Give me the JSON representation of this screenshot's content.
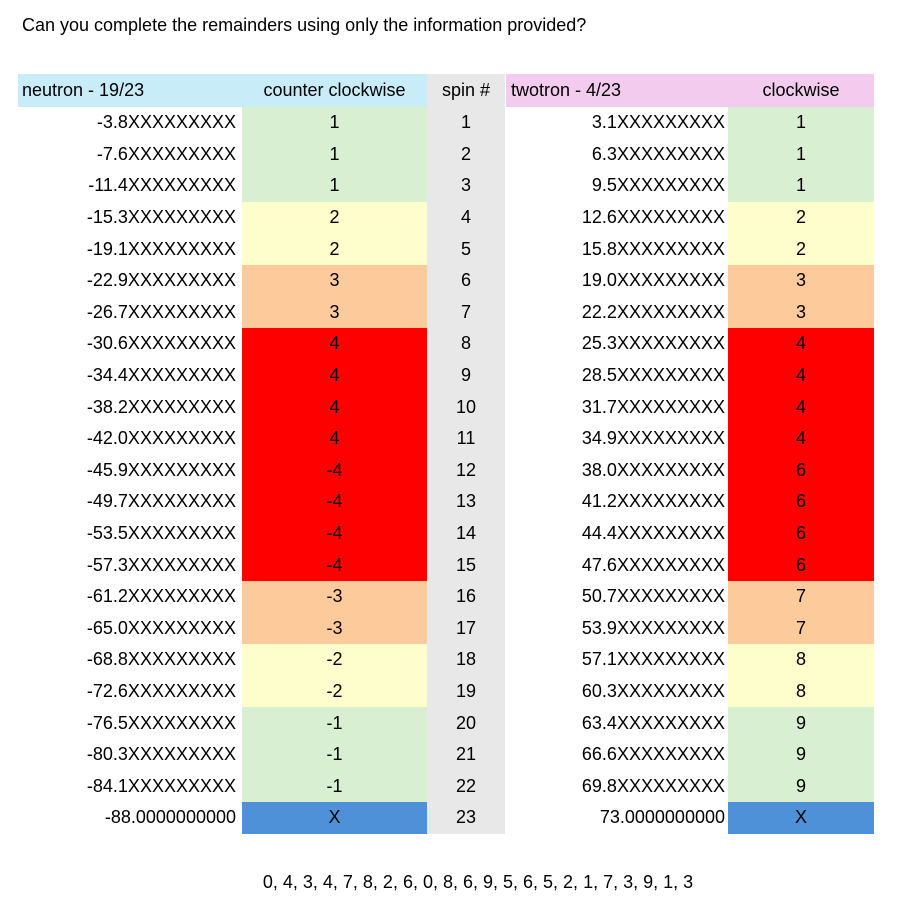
{
  "question": "Can you complete the remainders using only the information provided?",
  "headers": {
    "neutron": "neutron - 19/23",
    "ccw": "counter clockwise",
    "spin": "spin #",
    "twotron": "twotron - 4/23",
    "cw": "clockwise"
  },
  "colors": {
    "green": "#d9efd2",
    "yellow": "#fefdcc",
    "orange": "#fdca9c",
    "red": "#ff0000",
    "blue": "#4e91d9",
    "header_blue": "#c9ecf9",
    "header_pink": "#f2cbee",
    "spin_gray": "#e8e8e8"
  },
  "rows": [
    {
      "neutron": "-3.8XXXXXXXXX",
      "ccw": "1",
      "ccw_color": "green",
      "spin": "1",
      "twotron": "3.1XXXXXXXXX",
      "cw": "1",
      "cw_color": "green"
    },
    {
      "neutron": "-7.6XXXXXXXXX",
      "ccw": "1",
      "ccw_color": "green",
      "spin": "2",
      "twotron": "6.3XXXXXXXXX",
      "cw": "1",
      "cw_color": "green"
    },
    {
      "neutron": "-11.4XXXXXXXXX",
      "ccw": "1",
      "ccw_color": "green",
      "spin": "3",
      "twotron": "9.5XXXXXXXXX",
      "cw": "1",
      "cw_color": "green"
    },
    {
      "neutron": "-15.3XXXXXXXXX",
      "ccw": "2",
      "ccw_color": "yellow",
      "spin": "4",
      "twotron": "12.6XXXXXXXXX",
      "cw": "2",
      "cw_color": "yellow"
    },
    {
      "neutron": "-19.1XXXXXXXXX",
      "ccw": "2",
      "ccw_color": "yellow",
      "spin": "5",
      "twotron": "15.8XXXXXXXXX",
      "cw": "2",
      "cw_color": "yellow"
    },
    {
      "neutron": "-22.9XXXXXXXXX",
      "ccw": "3",
      "ccw_color": "orange",
      "spin": "6",
      "twotron": "19.0XXXXXXXXX",
      "cw": "3",
      "cw_color": "orange"
    },
    {
      "neutron": "-26.7XXXXXXXXX",
      "ccw": "3",
      "ccw_color": "orange",
      "spin": "7",
      "twotron": "22.2XXXXXXXXX",
      "cw": "3",
      "cw_color": "orange"
    },
    {
      "neutron": "-30.6XXXXXXXXX",
      "ccw": "4",
      "ccw_color": "red",
      "spin": "8",
      "twotron": "25.3XXXXXXXXX",
      "cw": "4",
      "cw_color": "red"
    },
    {
      "neutron": "-34.4XXXXXXXXX",
      "ccw": "4",
      "ccw_color": "red",
      "spin": "9",
      "twotron": "28.5XXXXXXXXX",
      "cw": "4",
      "cw_color": "red"
    },
    {
      "neutron": "-38.2XXXXXXXXX",
      "ccw": "4",
      "ccw_color": "red",
      "spin": "10",
      "twotron": "31.7XXXXXXXXX",
      "cw": "4",
      "cw_color": "red"
    },
    {
      "neutron": "-42.0XXXXXXXXX",
      "ccw": "4",
      "ccw_color": "red",
      "spin": "11",
      "twotron": "34.9XXXXXXXXX",
      "cw": "4",
      "cw_color": "red"
    },
    {
      "neutron": "-45.9XXXXXXXXX",
      "ccw": "-4",
      "ccw_color": "red",
      "spin": "12",
      "twotron": "38.0XXXXXXXXX",
      "cw": "6",
      "cw_color": "red"
    },
    {
      "neutron": "-49.7XXXXXXXXX",
      "ccw": "-4",
      "ccw_color": "red",
      "spin": "13",
      "twotron": "41.2XXXXXXXXX",
      "cw": "6",
      "cw_color": "red"
    },
    {
      "neutron": "-53.5XXXXXXXXX",
      "ccw": "-4",
      "ccw_color": "red",
      "spin": "14",
      "twotron": "44.4XXXXXXXXX",
      "cw": "6",
      "cw_color": "red"
    },
    {
      "neutron": "-57.3XXXXXXXXX",
      "ccw": "-4",
      "ccw_color": "red",
      "spin": "15",
      "twotron": "47.6XXXXXXXXX",
      "cw": "6",
      "cw_color": "red"
    },
    {
      "neutron": "-61.2XXXXXXXXX",
      "ccw": "-3",
      "ccw_color": "orange",
      "spin": "16",
      "twotron": "50.7XXXXXXXXX",
      "cw": "7",
      "cw_color": "orange"
    },
    {
      "neutron": "-65.0XXXXXXXXX",
      "ccw": "-3",
      "ccw_color": "orange",
      "spin": "17",
      "twotron": "53.9XXXXXXXXX",
      "cw": "7",
      "cw_color": "orange"
    },
    {
      "neutron": "-68.8XXXXXXXXX",
      "ccw": "-2",
      "ccw_color": "yellow",
      "spin": "18",
      "twotron": "57.1XXXXXXXXX",
      "cw": "8",
      "cw_color": "yellow"
    },
    {
      "neutron": "-72.6XXXXXXXXX",
      "ccw": "-2",
      "ccw_color": "yellow",
      "spin": "19",
      "twotron": "60.3XXXXXXXXX",
      "cw": "8",
      "cw_color": "yellow"
    },
    {
      "neutron": "-76.5XXXXXXXXX",
      "ccw": "-1",
      "ccw_color": "green",
      "spin": "20",
      "twotron": "63.4XXXXXXXXX",
      "cw": "9",
      "cw_color": "green"
    },
    {
      "neutron": "-80.3XXXXXXXXX",
      "ccw": "-1",
      "ccw_color": "green",
      "spin": "21",
      "twotron": "66.6XXXXXXXXX",
      "cw": "9",
      "cw_color": "green"
    },
    {
      "neutron": "-84.1XXXXXXXXX",
      "ccw": "-1",
      "ccw_color": "green",
      "spin": "22",
      "twotron": "69.8XXXXXXXXX",
      "cw": "9",
      "cw_color": "green"
    },
    {
      "neutron": "-88.0000000000",
      "ccw": "X",
      "ccw_color": "blue",
      "spin": "23",
      "twotron": "73.0000000000",
      "cw": "X",
      "cw_color": "blue"
    }
  ],
  "footer": "0, 4, 3, 4, 7, 8, 2, 6, 0, 8, 6, 9, 5, 6, 5, 2, 1, 7, 3, 9, 1, 3"
}
